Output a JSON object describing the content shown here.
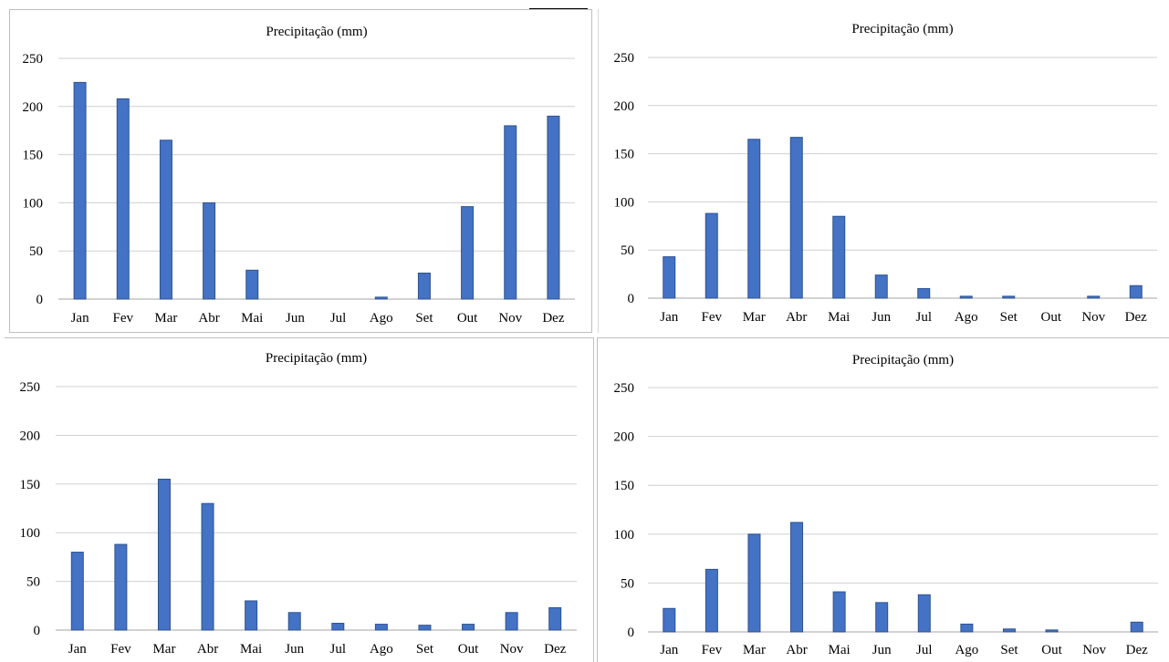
{
  "chart_data": [
    {
      "type": "bar",
      "title": "Precipitação (mm)",
      "categories": [
        "Jan",
        "Fev",
        "Mar",
        "Abr",
        "Mai",
        "Jun",
        "Jul",
        "Ago",
        "Set",
        "Out",
        "Nov",
        "Dez"
      ],
      "values": [
        225,
        208,
        165,
        100,
        30,
        0,
        0,
        2,
        27,
        96,
        180,
        190
      ],
      "yticks": [
        0,
        50,
        100,
        150,
        200,
        250
      ],
      "ylim": [
        0,
        250
      ],
      "grid": true,
      "color": "#4472C4"
    },
    {
      "type": "bar",
      "title": "Precipitação (mm)",
      "categories": [
        "Jan",
        "Fev",
        "Mar",
        "Abr",
        "Mai",
        "Jun",
        "Jul",
        "Ago",
        "Set",
        "Out",
        "Nov",
        "Dez"
      ],
      "values": [
        43,
        88,
        165,
        167,
        85,
        24,
        10,
        2,
        2,
        0,
        2,
        13
      ],
      "yticks": [
        0,
        50,
        100,
        150,
        200,
        250
      ],
      "ylim": [
        0,
        250
      ],
      "grid": true,
      "color": "#4472C4"
    },
    {
      "type": "bar",
      "title": "Precipitação (mm)",
      "categories": [
        "Jan",
        "Fev",
        "Mar",
        "Abr",
        "Mai",
        "Jun",
        "Jul",
        "Ago",
        "Set",
        "Out",
        "Nov",
        "Dez"
      ],
      "values": [
        80,
        88,
        155,
        130,
        30,
        18,
        7,
        6,
        5,
        6,
        18,
        23
      ],
      "yticks": [
        0,
        50,
        100,
        150,
        200,
        250
      ],
      "ylim": [
        0,
        250
      ],
      "grid": true,
      "color": "#4472C4"
    },
    {
      "type": "bar",
      "title": "Precipitação (mm)",
      "categories": [
        "Jan",
        "Fev",
        "Mar",
        "Abr",
        "Mai",
        "Jun",
        "Jul",
        "Ago",
        "Set",
        "Out",
        "Nov",
        "Dez"
      ],
      "values": [
        24,
        64,
        100,
        112,
        41,
        30,
        38,
        8,
        3,
        2,
        0,
        10
      ],
      "yticks": [
        0,
        50,
        100,
        150,
        200,
        250
      ],
      "ylim": [
        0,
        250
      ],
      "grid": true,
      "color": "#4472C4"
    }
  ]
}
